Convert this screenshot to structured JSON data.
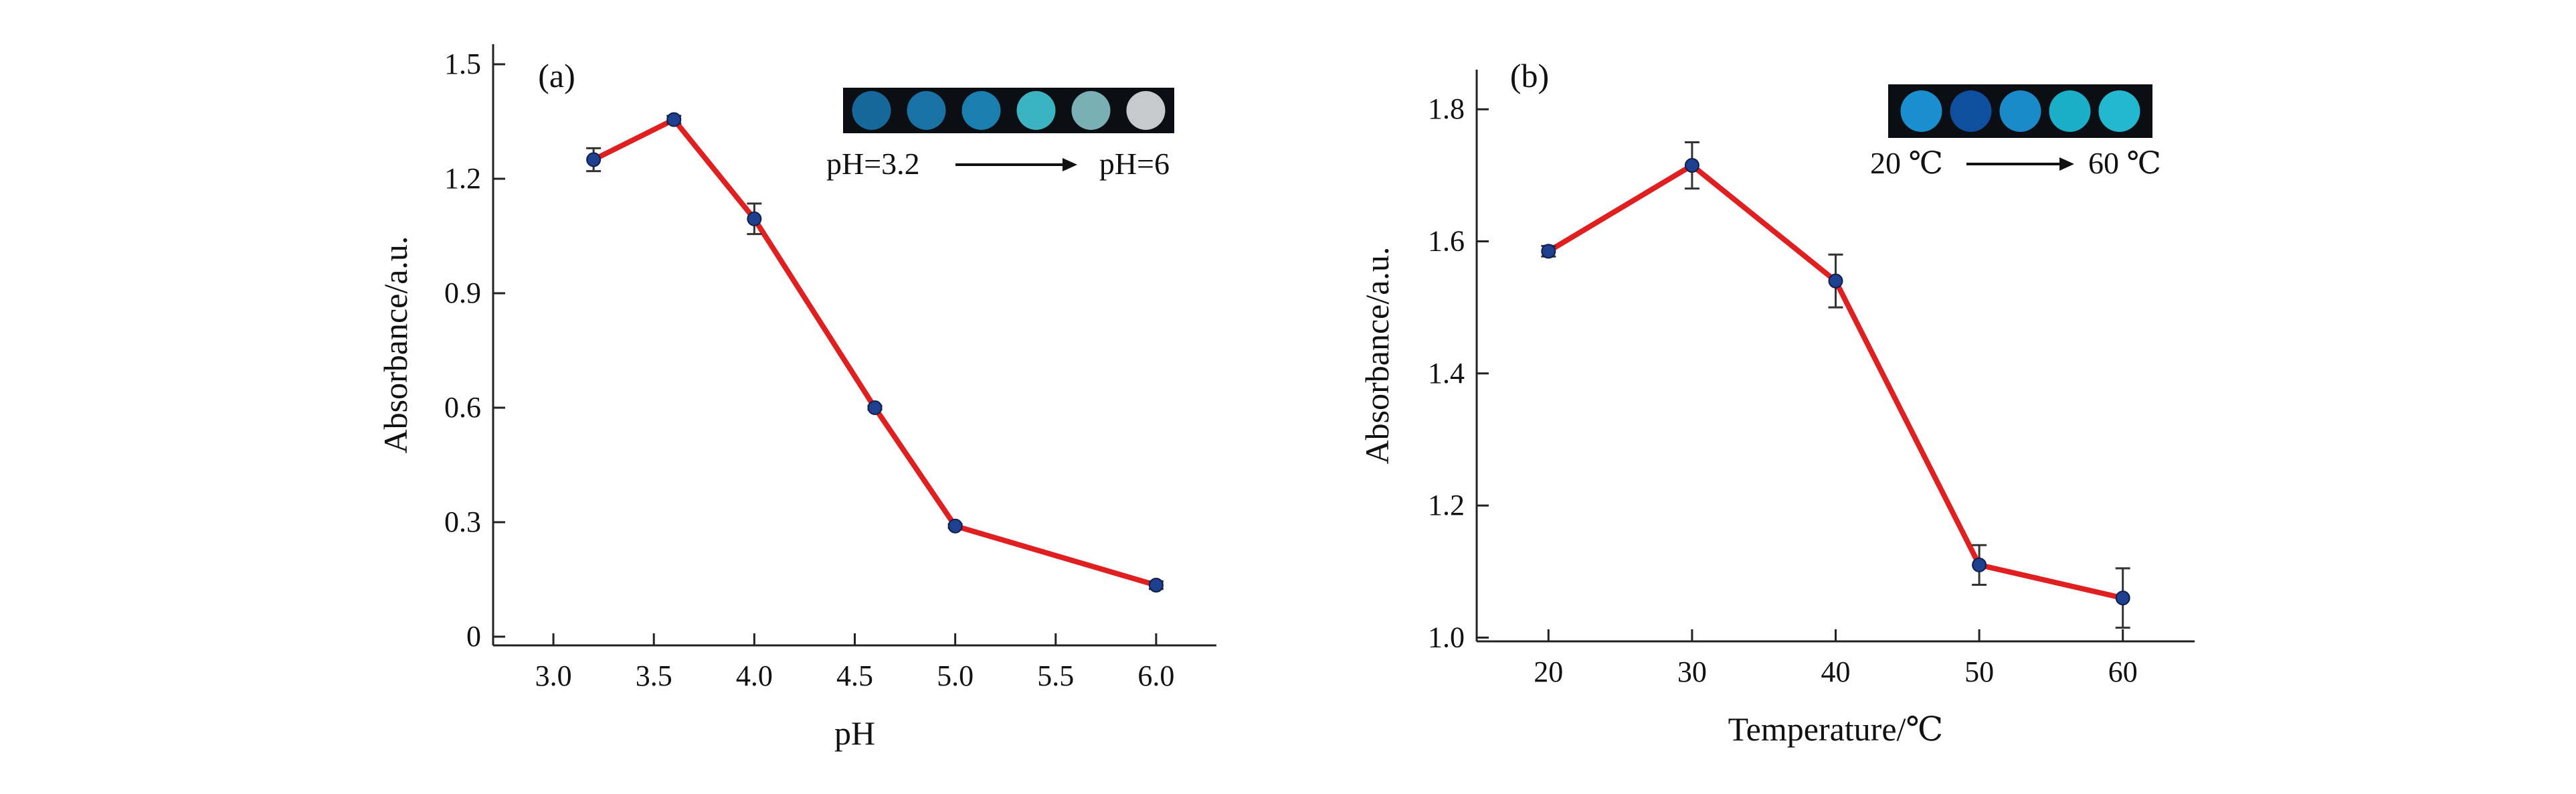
{
  "chart_data": [
    {
      "type": "line",
      "panel_label": "(a)",
      "xlabel": "pH",
      "ylabel": "Absorbance/a.u.",
      "xlim": [
        2.7,
        6.3
      ],
      "ylim": [
        0,
        1.5
      ],
      "x_ticks": [
        3.0,
        3.5,
        4.0,
        4.5,
        5.0,
        5.5,
        6.0
      ],
      "x_tick_labels": [
        "3.0",
        "3.5",
        "4.0",
        "4.5",
        "5.0",
        "5.5",
        "6.0"
      ],
      "y_ticks": [
        0,
        0.3,
        0.6,
        0.9,
        1.2,
        1.5
      ],
      "y_tick_labels": [
        "0",
        "0.3",
        "0.6",
        "0.9",
        "1.2",
        "1.5"
      ],
      "series": [
        {
          "x": [
            3.2,
            3.6,
            4.0,
            4.6,
            5.0,
            6.0
          ],
          "values": [
            1.25,
            1.355,
            1.095,
            0.6,
            0.29,
            0.135
          ],
          "errors": [
            0.03,
            0.01,
            0.04,
            0.005,
            0.005,
            0.01
          ],
          "line_color": "#e02020",
          "marker_color": "#1f3f8f"
        }
      ],
      "inset": {
        "colors": [
          "#17689a",
          "#1a72a4",
          "#1a7fae",
          "#3bb3c0",
          "#79afb5",
          "#c7cacc"
        ],
        "start_label": "pH=3.2",
        "end_label": "pH=6"
      }
    },
    {
      "type": "line",
      "panel_label": "(b)",
      "xlabel": "Temperature/℃",
      "ylabel": "Absorbance/a.u.",
      "xlim": [
        15,
        65
      ],
      "ylim": [
        0.97,
        1.86
      ],
      "x_ticks": [
        20,
        30,
        40,
        50,
        60
      ],
      "x_tick_labels": [
        "20",
        "30",
        "40",
        "50",
        "60"
      ],
      "y_ticks": [
        1.0,
        1.2,
        1.4,
        1.6,
        1.8
      ],
      "y_tick_labels": [
        "1.0",
        "1.2",
        "1.4",
        "1.6",
        "1.8"
      ],
      "series": [
        {
          "x": [
            20,
            30,
            40,
            50,
            60
          ],
          "values": [
            1.585,
            1.715,
            1.54,
            1.11,
            1.06
          ],
          "errors": [
            0.008,
            0.035,
            0.04,
            0.03,
            0.045
          ],
          "line_color": "#e02020",
          "marker_color": "#1f3f8f"
        }
      ],
      "inset": {
        "colors": [
          "#1a8fcf",
          "#0f4fa0",
          "#1a8acb",
          "#1aaec8",
          "#22b8cf"
        ],
        "start_label": "20 ℃",
        "end_label": "60 ℃"
      }
    }
  ]
}
